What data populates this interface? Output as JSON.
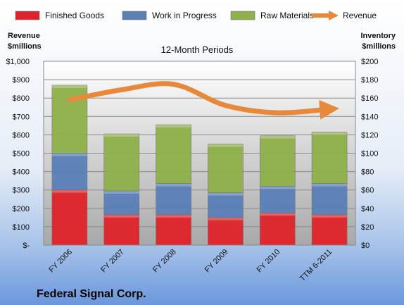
{
  "chart_data": {
    "type": "bar",
    "stacked": true,
    "subtitle": "12-Month Periods",
    "categories": [
      "FY 2006",
      "FY 2007",
      "FY 2008",
      "FY 2009",
      "FY 2010",
      "TTM 6-2011"
    ],
    "series": [
      {
        "name": "Finished Goods",
        "axis": "right",
        "color": "#e0222a",
        "values": [
          60,
          33,
          33,
          30,
          35,
          33
        ]
      },
      {
        "name": "Work in Progress",
        "axis": "right",
        "color": "#5a80b8",
        "values": [
          40,
          26,
          34,
          27,
          29,
          34
        ]
      },
      {
        "name": "Raw Materials",
        "axis": "right",
        "color": "#8fb04a",
        "values": [
          74,
          62,
          64,
          53,
          55,
          56
        ]
      },
      {
        "name": "Revenue",
        "axis": "left",
        "type": "line",
        "color": "#e8883a",
        "values": [
          790,
          845,
          875,
          760,
          720,
          740
        ]
      }
    ],
    "y_left": {
      "label_line1": "Revenue",
      "label_line2": "$millions",
      "min": 0,
      "max": 1000,
      "step": 100,
      "ticks": [
        "$-",
        "$100",
        "$200",
        "$300",
        "$400",
        "$500",
        "$600",
        "$700",
        "$800",
        "$900",
        "$1,000"
      ]
    },
    "y_right": {
      "label_line1": "Inventory",
      "label_line2": "$millions",
      "min": 0,
      "max": 200,
      "step": 20,
      "ticks": [
        "$0",
        "$20",
        "$40",
        "$60",
        "$80",
        "$100",
        "$120",
        "$140",
        "$160",
        "$180",
        "$200"
      ]
    },
    "grid": true,
    "legend_position": "top"
  },
  "company_name": "Federal Signal Corp."
}
